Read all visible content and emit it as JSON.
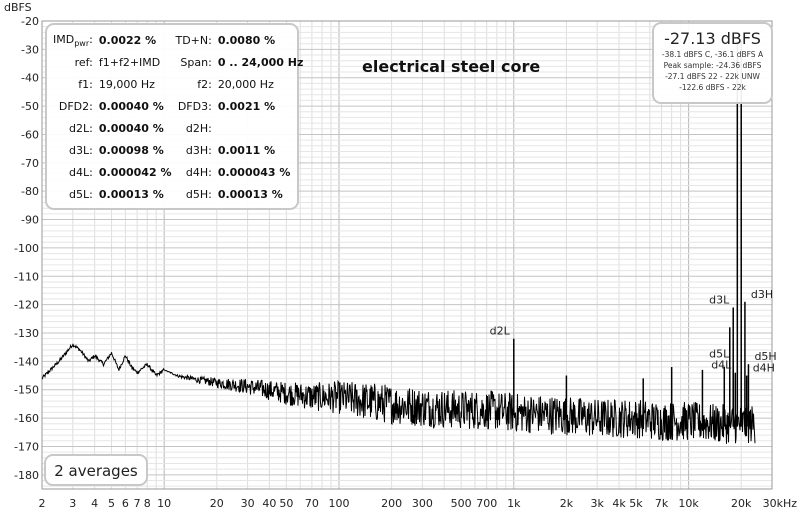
{
  "chart_data": {
    "type": "line",
    "title": "electrical steel core",
    "ylabel": "dBFS",
    "xlabel": "",
    "x_unit_label": "30kHz",
    "x_scale": "log",
    "xlim": [
      2,
      30000
    ],
    "ylim": [
      -185,
      -20
    ],
    "grid": true,
    "x_ticks": [
      {
        "v": 2,
        "label": "2"
      },
      {
        "v": 3,
        "label": "3"
      },
      {
        "v": 4,
        "label": "4"
      },
      {
        "v": 5,
        "label": "5"
      },
      {
        "v": 6,
        "label": "6"
      },
      {
        "v": 7,
        "label": "7"
      },
      {
        "v": 8,
        "label": "8"
      },
      {
        "v": 10,
        "label": "10"
      },
      {
        "v": 20,
        "label": "20"
      },
      {
        "v": 30,
        "label": "30"
      },
      {
        "v": 40,
        "label": "40"
      },
      {
        "v": 50,
        "label": "50"
      },
      {
        "v": 70,
        "label": "70"
      },
      {
        "v": 100,
        "label": "100"
      },
      {
        "v": 200,
        "label": "200"
      },
      {
        "v": 300,
        "label": "300"
      },
      {
        "v": 500,
        "label": "500"
      },
      {
        "v": 700,
        "label": "700"
      },
      {
        "v": 1000,
        "label": "1k"
      },
      {
        "v": 2000,
        "label": "2k"
      },
      {
        "v": 3000,
        "label": "3k"
      },
      {
        "v": 4000,
        "label": "4k"
      },
      {
        "v": 5000,
        "label": "5k"
      },
      {
        "v": 7000,
        "label": "7k"
      },
      {
        "v": 10000,
        "label": "10k"
      },
      {
        "v": 20000,
        "label": "20k"
      }
    ],
    "y_ticks": [
      -20,
      -30,
      -40,
      -50,
      -60,
      -70,
      -80,
      -90,
      -100,
      -110,
      -120,
      -130,
      -140,
      -150,
      -160,
      -170,
      -180
    ],
    "series": [
      {
        "x": [
          2,
          2.5,
          3,
          3.3,
          3.7,
          4,
          4.5,
          5,
          5.5,
          6,
          6.5,
          7,
          8,
          9,
          10,
          12,
          15,
          20,
          30,
          50,
          70,
          100,
          200,
          300,
          500,
          700,
          1000,
          2000,
          3000,
          5000,
          7000,
          10000,
          15000,
          20000,
          24000
        ],
        "y": [
          -146,
          -140,
          -134,
          -136,
          -140,
          -138,
          -141,
          -137,
          -143,
          -138,
          -142,
          -144,
          -141,
          -145,
          -143,
          -145,
          -146,
          -147,
          -148,
          -150,
          -151,
          -151,
          -153,
          -154,
          -155,
          -155,
          -156,
          -157,
          -158,
          -158,
          -159,
          -159,
          -160,
          -160,
          -160
        ],
        "noise_band_db": 14,
        "noise_from_hz": 10
      }
    ],
    "peaks": [
      {
        "x": 1000,
        "y": -132,
        "label": "d2L"
      },
      {
        "x": 19000,
        "y": -27,
        "label": ""
      },
      {
        "x": 20000,
        "y": -27,
        "label": ""
      },
      {
        "x": 18000,
        "y": -140,
        "label": "d5L"
      },
      {
        "x": 18500,
        "y": -144,
        "label": "d4L"
      },
      {
        "x": 21000,
        "y": -119,
        "label": "d3H"
      },
      {
        "x": 22000,
        "y": -141,
        "label": "d5H"
      },
      {
        "x": 21500,
        "y": -145,
        "label": "d4H"
      },
      {
        "x": 17200,
        "y": -128,
        "label": ""
      },
      {
        "x": 18000,
        "y": -121,
        "label": "d3L"
      },
      {
        "x": 16000,
        "y": -142,
        "label": ""
      },
      {
        "x": 12000,
        "y": -143,
        "label": ""
      },
      {
        "x": 8000,
        "y": -142,
        "label": ""
      },
      {
        "x": 5500,
        "y": -146,
        "label": ""
      },
      {
        "x": 2000,
        "y": -145,
        "label": ""
      }
    ]
  },
  "stats": {
    "rows": [
      {
        "l1": "IMD",
        "l1_sub": "pwr",
        "v1": "0.0022 %",
        "l2": "TD+N:",
        "v2": "0.0080 %"
      },
      {
        "l1": "ref:",
        "v1": "f1+f2+IMD",
        "l2": "Span:",
        "v2": "0 .. 24,000 Hz"
      },
      {
        "l1": "f1:",
        "v1": "19,000 Hz",
        "l2": "f2:",
        "v2": "20,000 Hz"
      },
      {
        "l1": "DFD2:",
        "v1": "0.00040 %",
        "l2": "DFD3:",
        "v2": "0.0021 %"
      },
      {
        "l1": "d2L:",
        "v1": "0.00040 %",
        "l2": "d2H:",
        "v2": ""
      },
      {
        "l1": "d3L:",
        "v1": "0.00098 %",
        "l2": "d3H:",
        "v2": "0.0011 %"
      },
      {
        "l1": "d4L:",
        "v1": "0.000042 %",
        "l2": "d4H:",
        "v2": "0.000043 %"
      },
      {
        "l1": "d5L:",
        "v1": "0.00013 %",
        "l2": "d5H:",
        "v2": "0.00013 %"
      }
    ]
  },
  "level": {
    "main": "-27.13 dBFS",
    "line1": "-38.1 dBFS C, -36.1 dBFS A",
    "line2": "Peak sample: -24.36 dBFS",
    "line3": "-27.1 dBFS 22 - 22k UNW",
    "line4": "-122.6 dBFS - 22k"
  },
  "averages": "2 averages"
}
